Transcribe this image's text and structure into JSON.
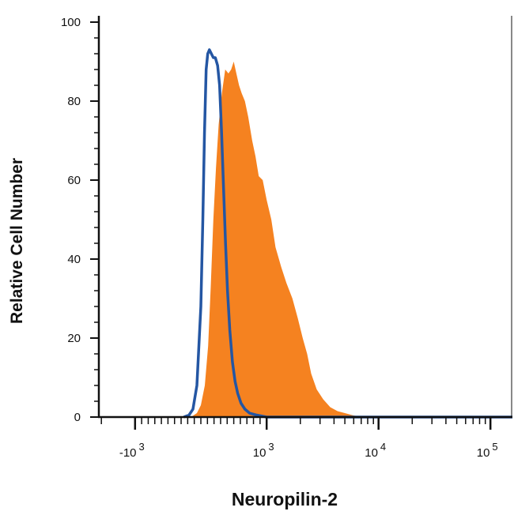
{
  "chart_data": {
    "type": "area",
    "xlabel": "Neuropilin-2",
    "ylabel": "Relative Cell Number",
    "x_scale": "biexponential",
    "ylim": [
      0,
      100
    ],
    "y_ticks": [
      {
        "value": 0,
        "label": "0"
      },
      {
        "value": 20,
        "label": "20"
      },
      {
        "value": 40,
        "label": "40"
      },
      {
        "value": 60,
        "label": "60"
      },
      {
        "value": 80,
        "label": "80"
      },
      {
        "value": 100,
        "label": "100"
      }
    ],
    "x_ticks": [
      {
        "value": -1000,
        "base": "-10",
        "exp": "3"
      },
      {
        "value": 1000,
        "base": "10",
        "exp": "3"
      },
      {
        "value": 10000,
        "base": "10",
        "exp": "4"
      },
      {
        "value": 100000,
        "base": "10",
        "exp": "5"
      }
    ],
    "grid": false,
    "series": [
      {
        "style": "filled",
        "color": "#F58220",
        "points": [
          [
            -150,
            0
          ],
          [
            -60,
            1
          ],
          [
            0,
            3
          ],
          [
            60,
            8
          ],
          [
            110,
            18
          ],
          [
            150,
            33
          ],
          [
            190,
            50
          ],
          [
            230,
            63
          ],
          [
            270,
            74
          ],
          [
            320,
            82
          ],
          [
            370,
            88
          ],
          [
            420,
            87
          ],
          [
            460,
            88
          ],
          [
            500,
            90
          ],
          [
            540,
            87
          ],
          [
            580,
            84
          ],
          [
            620,
            82
          ],
          [
            670,
            80
          ],
          [
            720,
            76
          ],
          [
            780,
            70
          ],
          [
            830,
            66
          ],
          [
            880,
            61
          ],
          [
            940,
            60
          ],
          [
            1000,
            55
          ],
          [
            1100,
            50
          ],
          [
            1200,
            43
          ],
          [
            1350,
            38
          ],
          [
            1500,
            34
          ],
          [
            1700,
            30
          ],
          [
            1900,
            25
          ],
          [
            2100,
            20
          ],
          [
            2300,
            16
          ],
          [
            2500,
            11
          ],
          [
            2800,
            7
          ],
          [
            3200,
            4.5
          ],
          [
            3700,
            2.5
          ],
          [
            4300,
            1.5
          ],
          [
            5000,
            1
          ],
          [
            5800,
            0.5
          ],
          [
            7000,
            0
          ],
          [
            200000,
            0
          ],
          [
            235000,
            1
          ],
          [
            250000,
            2
          ]
        ]
      },
      {
        "style": "line",
        "color": "#2456A3",
        "points": [
          [
            -260,
            0
          ],
          [
            -180,
            0.5
          ],
          [
            -120,
            2
          ],
          [
            -60,
            8
          ],
          [
            0,
            28
          ],
          [
            30,
            50
          ],
          [
            55,
            72
          ],
          [
            80,
            88
          ],
          [
            105,
            92
          ],
          [
            130,
            93
          ],
          [
            160,
            92
          ],
          [
            190,
            91
          ],
          [
            220,
            91
          ],
          [
            255,
            89
          ],
          [
            285,
            84
          ],
          [
            315,
            72
          ],
          [
            345,
            58
          ],
          [
            375,
            44
          ],
          [
            405,
            32
          ],
          [
            440,
            22
          ],
          [
            480,
            14
          ],
          [
            520,
            9
          ],
          [
            560,
            6
          ],
          [
            610,
            3.5
          ],
          [
            670,
            2
          ],
          [
            740,
            1
          ],
          [
            850,
            0.5
          ],
          [
            1000,
            0
          ],
          [
            250000,
            0
          ]
        ]
      }
    ]
  }
}
